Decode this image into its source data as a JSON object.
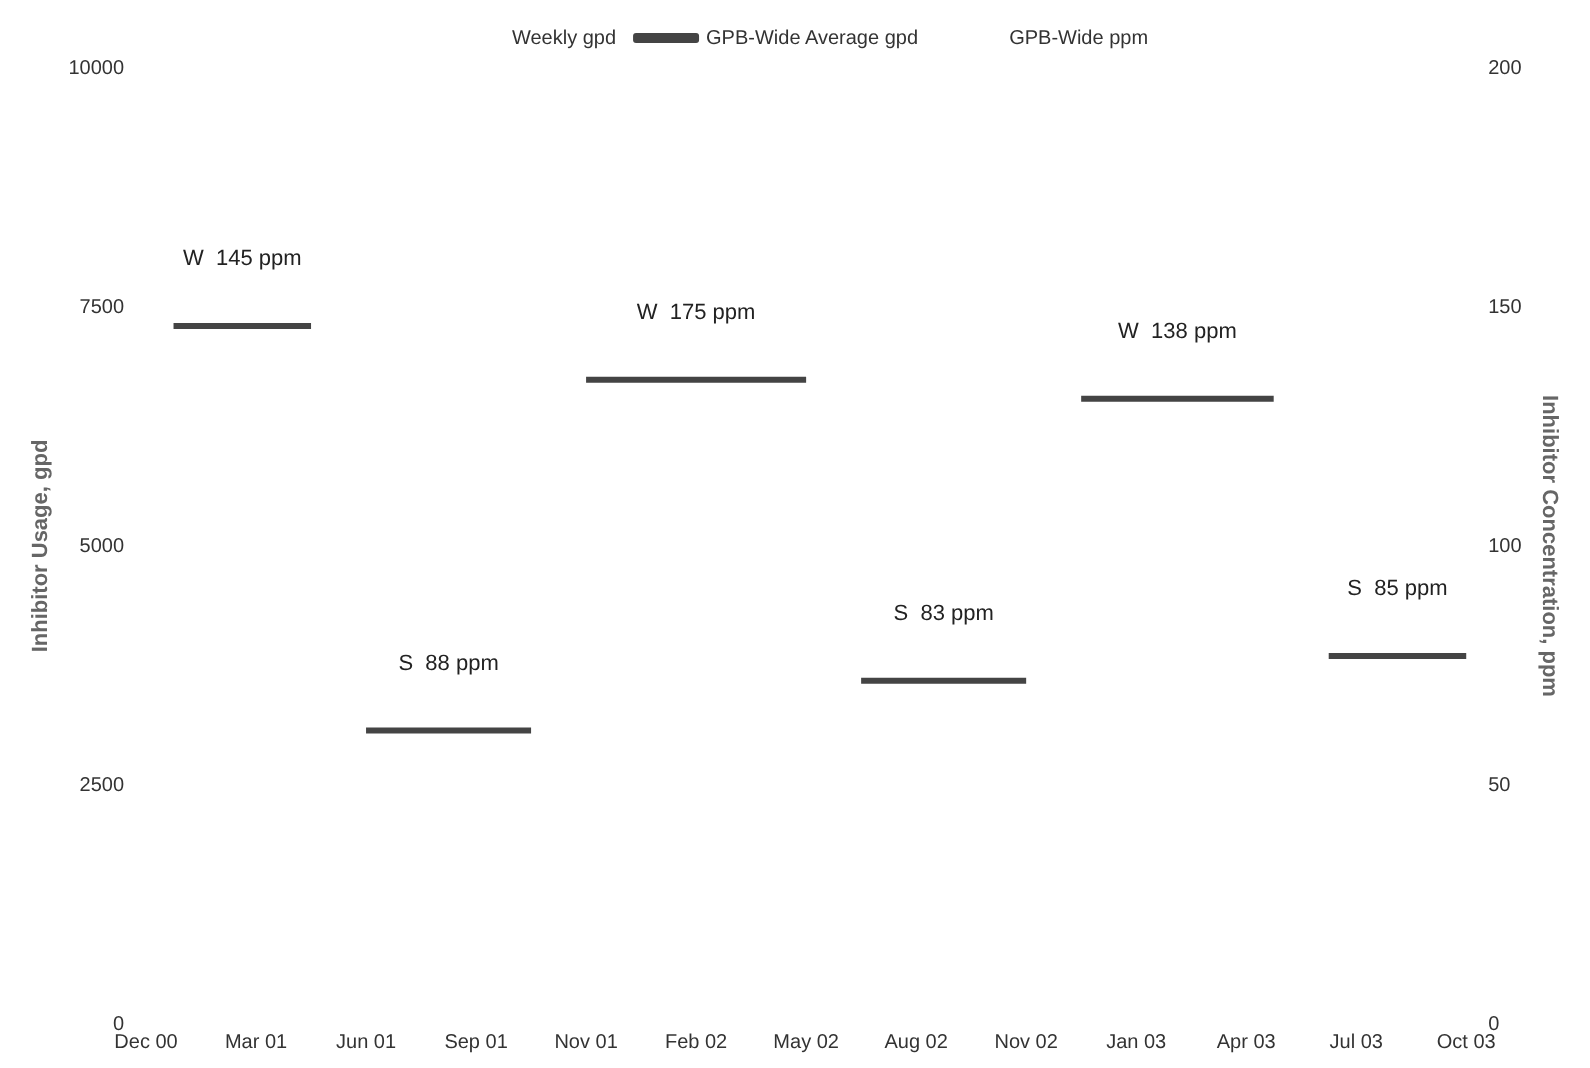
{
  "chart_data": {
    "type": "line",
    "xlabel": null,
    "ylabel": "Inhibitor Usage, gpd",
    "y2label": "Inhibitor Concentration, ppm",
    "categories": [
      "Dec 00",
      null,
      null,
      null,
      "Mar 01",
      null,
      null,
      null,
      "Jun 01",
      null,
      null,
      null,
      "Sep 01",
      null,
      null,
      null,
      "Nov 01",
      null,
      null,
      null,
      "Feb 02",
      null,
      null,
      null,
      "May 02",
      null,
      null,
      null,
      "Aug 02",
      null,
      null,
      null,
      "Nov 02",
      null,
      null,
      null,
      "Jan 03",
      null,
      null,
      null,
      "Apr 03",
      null,
      null,
      null,
      "Jul 03",
      null,
      null,
      null,
      "Oct 03"
    ],
    "series": [
      {
        "name": "Weekly gpd",
        "values": [
          null,
          null,
          null,
          null,
          null,
          null,
          null,
          null,
          null,
          null,
          null,
          null,
          null,
          null,
          null,
          null,
          null,
          null,
          null,
          null,
          null,
          null,
          null,
          null,
          null,
          null,
          null,
          null,
          null,
          null,
          null,
          null,
          null,
          null,
          null,
          null,
          null,
          null,
          null,
          null,
          null,
          null,
          null,
          null,
          null,
          null,
          null,
          null,
          null
        ]
      },
      {
        "name": "GPB-Wide Average gpd",
        "color": "#444444",
        "values": [
          null,
          7300,
          7300,
          7300,
          7300,
          7300,
          7300,
          null,
          3070,
          3070,
          3070,
          3070,
          3070,
          3070,
          3070,
          null,
          6740,
          6740,
          6740,
          6740,
          6740,
          6740,
          6740,
          6740,
          6740,
          null,
          3590,
          3590,
          3590,
          3590,
          3590,
          3590,
          3590,
          null,
          6540,
          6540,
          6540,
          6540,
          6540,
          6540,
          6540,
          6540,
          null,
          3850,
          3850,
          3850,
          3850,
          3850,
          3850
        ]
      },
      {
        "name": "GPB-Wide ppm",
        "values": [
          null,
          null,
          null,
          null,
          null,
          null,
          null,
          null,
          null,
          null,
          null,
          null,
          null,
          null,
          null,
          null,
          null,
          null,
          null,
          null,
          null,
          null,
          null,
          null,
          null,
          null,
          null,
          null,
          null,
          null,
          null,
          null,
          null,
          null,
          null,
          null,
          null,
          null,
          null,
          null,
          null,
          null,
          null,
          null,
          null,
          null,
          null,
          null,
          null
        ]
      }
    ],
    "ylim": [
      0,
      10000
    ],
    "yticks": [
      0,
      2500,
      5000,
      7500,
      10000
    ],
    "y2lim": [
      0,
      200
    ],
    "y2ticks": [
      0,
      50,
      100,
      150,
      200
    ],
    "annotations": [
      "W  145 ppm",
      "S  88 ppm",
      "W  175 ppm",
      "S  83 ppm",
      "W  138 ppm",
      "S  85 ppm"
    ],
    "grid": false,
    "legend": "top",
    "marker": "none",
    "line_style": "solid"
  }
}
